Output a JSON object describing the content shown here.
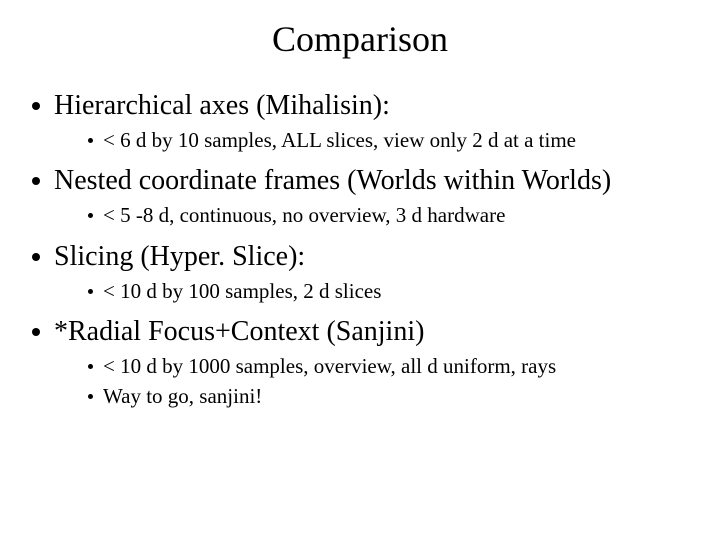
{
  "title": "Comparison",
  "items": [
    {
      "label": "Hierarchical axes (Mihalisin):",
      "sub": [
        "< 6 d by 10 samples, ALL slices, view only 2 d at a time"
      ]
    },
    {
      "label": "Nested coordinate frames (Worlds within Worlds)",
      "sub": [
        "< 5 -8 d, continuous, no overview, 3 d hardware"
      ]
    },
    {
      "label": "Slicing  (Hyper. Slice):",
      "sub": [
        "< 10 d  by 100 samples, 2 d slices"
      ]
    },
    {
      "label": "*Radial Focus+Context (Sanjini)",
      "sub": [
        "< 10 d by 1000 samples, overview, all d uniform, rays",
        "Way to go, sanjini!"
      ]
    }
  ],
  "style": {
    "background_color": "#ffffff",
    "text_color": "#000000",
    "title_fontsize": 36,
    "l1_fontsize": 28,
    "l2_fontsize": 21,
    "font_family": "Times New Roman"
  }
}
